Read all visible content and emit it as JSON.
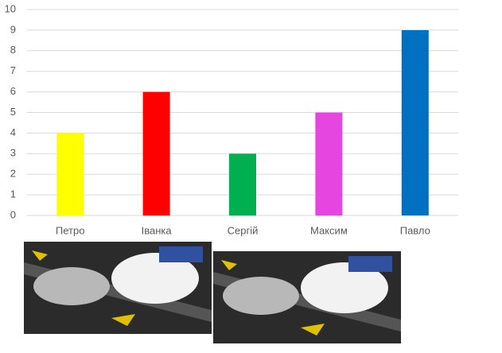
{
  "chart_data": {
    "type": "bar",
    "categories": [
      "Петро",
      "Іванка",
      "Сергій",
      "Максим",
      "Павло"
    ],
    "values": [
      4,
      6,
      3,
      5,
      9
    ],
    "colors": [
      "#ffff00",
      "#ff0000",
      "#00b050",
      "#e646e0",
      "#0070c0"
    ],
    "ylim": [
      0,
      10
    ],
    "yticks": [
      0,
      1,
      2,
      3,
      4,
      5,
      6,
      7,
      8,
      9,
      10
    ],
    "grid": true
  }
}
